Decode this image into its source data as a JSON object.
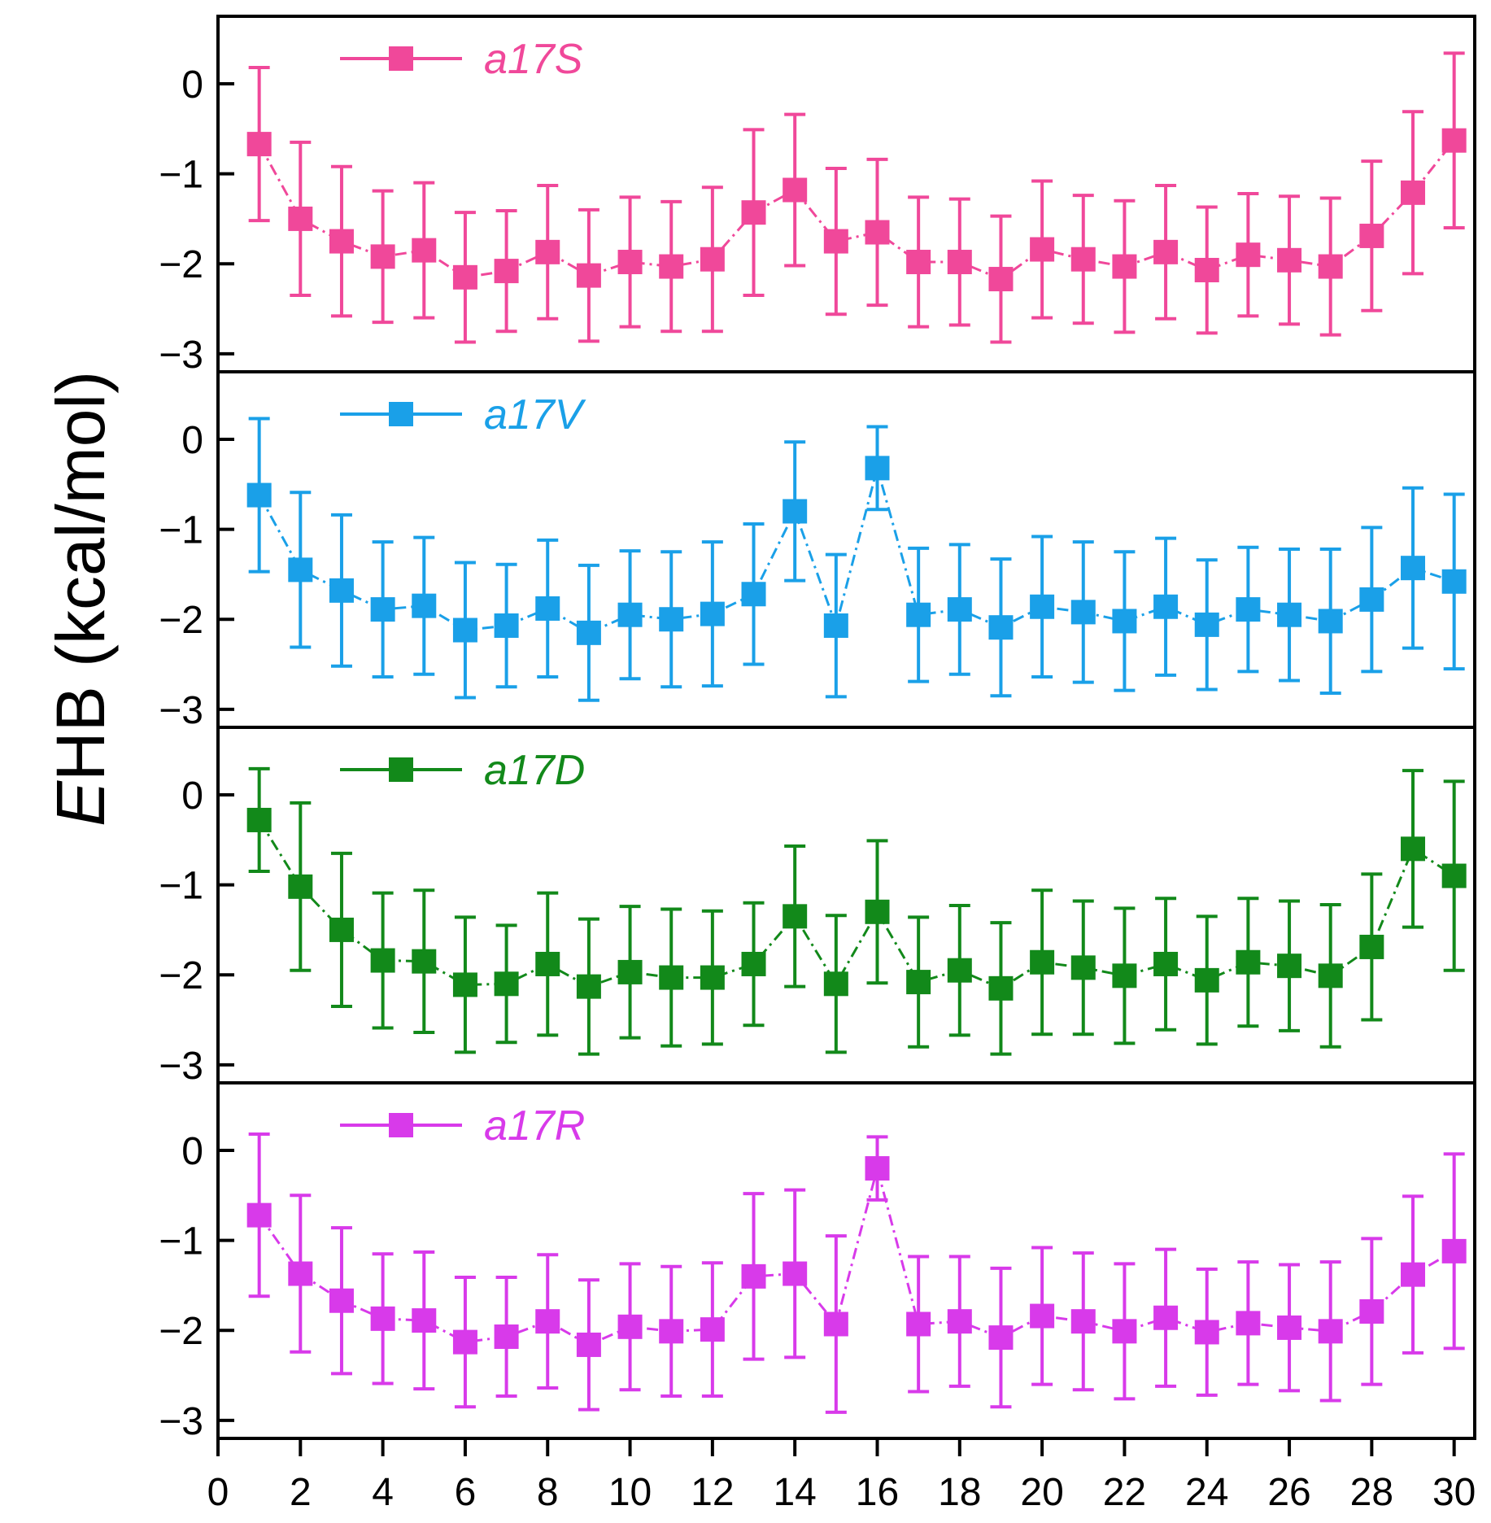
{
  "chart_data": {
    "type": "line",
    "ylabel_italic": "E",
    "ylabel_rest": "HB (kcal/mol)",
    "xlabel": "",
    "xlim": [
      0,
      30.5
    ],
    "xticks": [
      0,
      2,
      4,
      6,
      8,
      10,
      12,
      14,
      16,
      18,
      20,
      22,
      24,
      26,
      28,
      30
    ],
    "x": [
      1,
      2,
      3,
      4,
      5,
      6,
      7,
      8,
      9,
      10,
      11,
      12,
      13,
      14,
      15,
      16,
      17,
      18,
      19,
      20,
      21,
      22,
      23,
      24,
      25,
      26,
      27,
      28,
      29,
      30
    ],
    "ylim": [
      -3.2,
      0.75
    ],
    "yticks": [
      0,
      -1,
      -2,
      -3
    ],
    "ytick_labels": [
      "0",
      "−1",
      "−2",
      "−3"
    ],
    "panels": [
      {
        "name": "a17S",
        "color": "#f0489a",
        "values": [
          -0.67,
          -1.5,
          -1.75,
          -1.92,
          -1.85,
          -2.15,
          -2.08,
          -1.87,
          -2.13,
          -1.98,
          -2.03,
          -1.95,
          -1.43,
          -1.18,
          -1.75,
          -1.65,
          -1.98,
          -1.98,
          -2.17,
          -1.84,
          -1.95,
          -2.03,
          -1.87,
          -2.07,
          -1.9,
          -1.96,
          -2.03,
          -1.69,
          -1.21,
          -0.63
        ],
        "errors": [
          0.85,
          0.85,
          0.83,
          0.73,
          0.75,
          0.72,
          0.67,
          0.74,
          0.73,
          0.72,
          0.72,
          0.8,
          0.92,
          0.84,
          0.81,
          0.81,
          0.72,
          0.7,
          0.7,
          0.76,
          0.71,
          0.73,
          0.74,
          0.7,
          0.68,
          0.71,
          0.76,
          0.83,
          0.9,
          0.97
        ]
      },
      {
        "name": "a17V",
        "color": "#1aa0e8",
        "values": [
          -0.62,
          -1.45,
          -1.68,
          -1.89,
          -1.85,
          -2.12,
          -2.07,
          -1.88,
          -2.15,
          -1.95,
          -2.0,
          -1.94,
          -1.72,
          -0.8,
          -2.07,
          -0.32,
          -1.95,
          -1.89,
          -2.09,
          -1.86,
          -1.92,
          -2.02,
          -1.86,
          -2.06,
          -1.89,
          -1.95,
          -2.02,
          -1.78,
          -1.43,
          -1.58
        ],
        "errors": [
          0.85,
          0.86,
          0.84,
          0.75,
          0.76,
          0.75,
          0.68,
          0.76,
          0.75,
          0.71,
          0.75,
          0.8,
          0.78,
          0.77,
          0.79,
          0.46,
          0.74,
          0.72,
          0.76,
          0.78,
          0.78,
          0.77,
          0.76,
          0.72,
          0.69,
          0.73,
          0.8,
          0.8,
          0.89,
          0.97
        ]
      },
      {
        "name": "a17D",
        "color": "#12891a",
        "values": [
          -0.28,
          -1.02,
          -1.5,
          -1.84,
          -1.85,
          -2.11,
          -2.1,
          -1.88,
          -2.13,
          -1.97,
          -2.03,
          -2.03,
          -1.88,
          -1.35,
          -2.1,
          -1.3,
          -2.08,
          -1.95,
          -2.15,
          -1.86,
          -1.92,
          -2.01,
          -1.88,
          -2.06,
          -1.86,
          -1.9,
          -2.01,
          -1.69,
          -0.6,
          -0.9
        ],
        "errors": [
          0.57,
          0.93,
          0.85,
          0.75,
          0.79,
          0.75,
          0.65,
          0.79,
          0.75,
          0.73,
          0.76,
          0.74,
          0.68,
          0.78,
          0.76,
          0.79,
          0.72,
          0.72,
          0.73,
          0.8,
          0.74,
          0.75,
          0.73,
          0.71,
          0.71,
          0.72,
          0.79,
          0.81,
          0.87,
          1.05
        ]
      },
      {
        "name": "a17R",
        "color": "#d83aea",
        "values": [
          -0.72,
          -1.37,
          -1.67,
          -1.87,
          -1.89,
          -2.13,
          -2.07,
          -1.9,
          -2.16,
          -1.96,
          -2.01,
          -1.99,
          -1.4,
          -1.37,
          -1.93,
          -0.2,
          -1.93,
          -1.9,
          -2.08,
          -1.84,
          -1.9,
          -2.01,
          -1.86,
          -2.02,
          -1.92,
          -1.97,
          -2.01,
          -1.79,
          -1.38,
          -1.12
        ],
        "errors": [
          0.9,
          0.87,
          0.81,
          0.72,
          0.76,
          0.72,
          0.66,
          0.74,
          0.72,
          0.7,
          0.72,
          0.74,
          0.92,
          0.93,
          0.98,
          0.35,
          0.75,
          0.72,
          0.77,
          0.76,
          0.76,
          0.75,
          0.76,
          0.7,
          0.68,
          0.7,
          0.77,
          0.81,
          0.87,
          1.08
        ]
      }
    ]
  }
}
